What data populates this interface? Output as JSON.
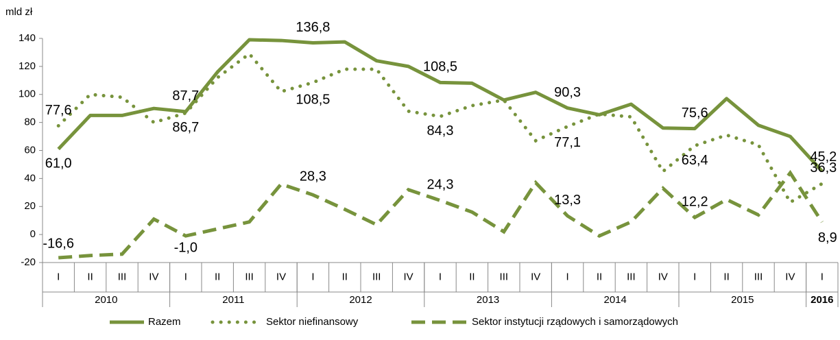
{
  "chart_data": {
    "type": "line",
    "y_label": "mld zł",
    "categories": [
      "I",
      "II",
      "III",
      "IV",
      "I",
      "II",
      "III",
      "IV",
      "I",
      "II",
      "III",
      "IV",
      "I",
      "II",
      "III",
      "IV",
      "I",
      "II",
      "III",
      "IV",
      "I",
      "II",
      "III",
      "IV",
      "I"
    ],
    "year_groups": [
      {
        "label": "2010",
        "span": 4
      },
      {
        "label": "2011",
        "span": 4
      },
      {
        "label": "2012",
        "span": 4
      },
      {
        "label": "2013",
        "span": 4
      },
      {
        "label": "2014",
        "span": 4
      },
      {
        "label": "2015",
        "span": 4
      },
      {
        "label": "2016",
        "span": 1
      }
    ],
    "ylim": [
      -20,
      140
    ],
    "yticks": [
      -20,
      0,
      20,
      40,
      60,
      80,
      100,
      120,
      140
    ],
    "grid": false,
    "series": [
      {
        "name": "Razem",
        "color": "#77933c",
        "style": "solid",
        "values": [
          61.0,
          85,
          85,
          90,
          87.7,
          116,
          139,
          138.5,
          136.8,
          137.5,
          124,
          120,
          108.5,
          108,
          96,
          101.5,
          90.3,
          85.5,
          93,
          76,
          75.6,
          97,
          78,
          70,
          45.2
        ],
        "value_labels": [
          "61,0",
          null,
          null,
          null,
          "87,7",
          null,
          null,
          null,
          "136,8",
          null,
          null,
          null,
          "108,5",
          null,
          null,
          null,
          "90,3",
          null,
          null,
          null,
          "75,6",
          null,
          null,
          null,
          "45,2"
        ]
      },
      {
        "name": "Sektor niefinansowy",
        "color": "#77933c",
        "style": "dotted",
        "values": [
          77.6,
          100,
          98,
          80,
          86.7,
          112,
          129,
          102,
          108.5,
          118,
          118,
          88,
          84.3,
          92,
          96,
          67,
          77.1,
          86,
          84,
          45,
          63.4,
          71,
          64,
          23,
          36.3
        ],
        "value_labels": [
          "77,6",
          null,
          null,
          null,
          "86,7",
          null,
          null,
          null,
          "108,5",
          null,
          null,
          null,
          "84,3",
          null,
          null,
          null,
          "77,1",
          null,
          null,
          null,
          "63,4",
          null,
          null,
          null,
          "36,3"
        ]
      },
      {
        "name": "Sektor instytucji rządowych i samorządowych",
        "color": "#77933c",
        "style": "dashed",
        "values": [
          -16.6,
          -15,
          -14,
          11,
          -1.0,
          4,
          9,
          36,
          28.3,
          18,
          7,
          32,
          24.3,
          16,
          2,
          37,
          13.3,
          -1,
          9,
          33,
          12.2,
          25,
          14,
          44,
          8.9
        ],
        "value_labels": [
          "-16,6",
          null,
          null,
          null,
          "-1,0",
          null,
          null,
          null,
          "28,3",
          null,
          null,
          null,
          "24,3",
          null,
          null,
          null,
          "13,3",
          null,
          null,
          null,
          "12,2",
          null,
          null,
          null,
          "8,9"
        ]
      }
    ]
  }
}
